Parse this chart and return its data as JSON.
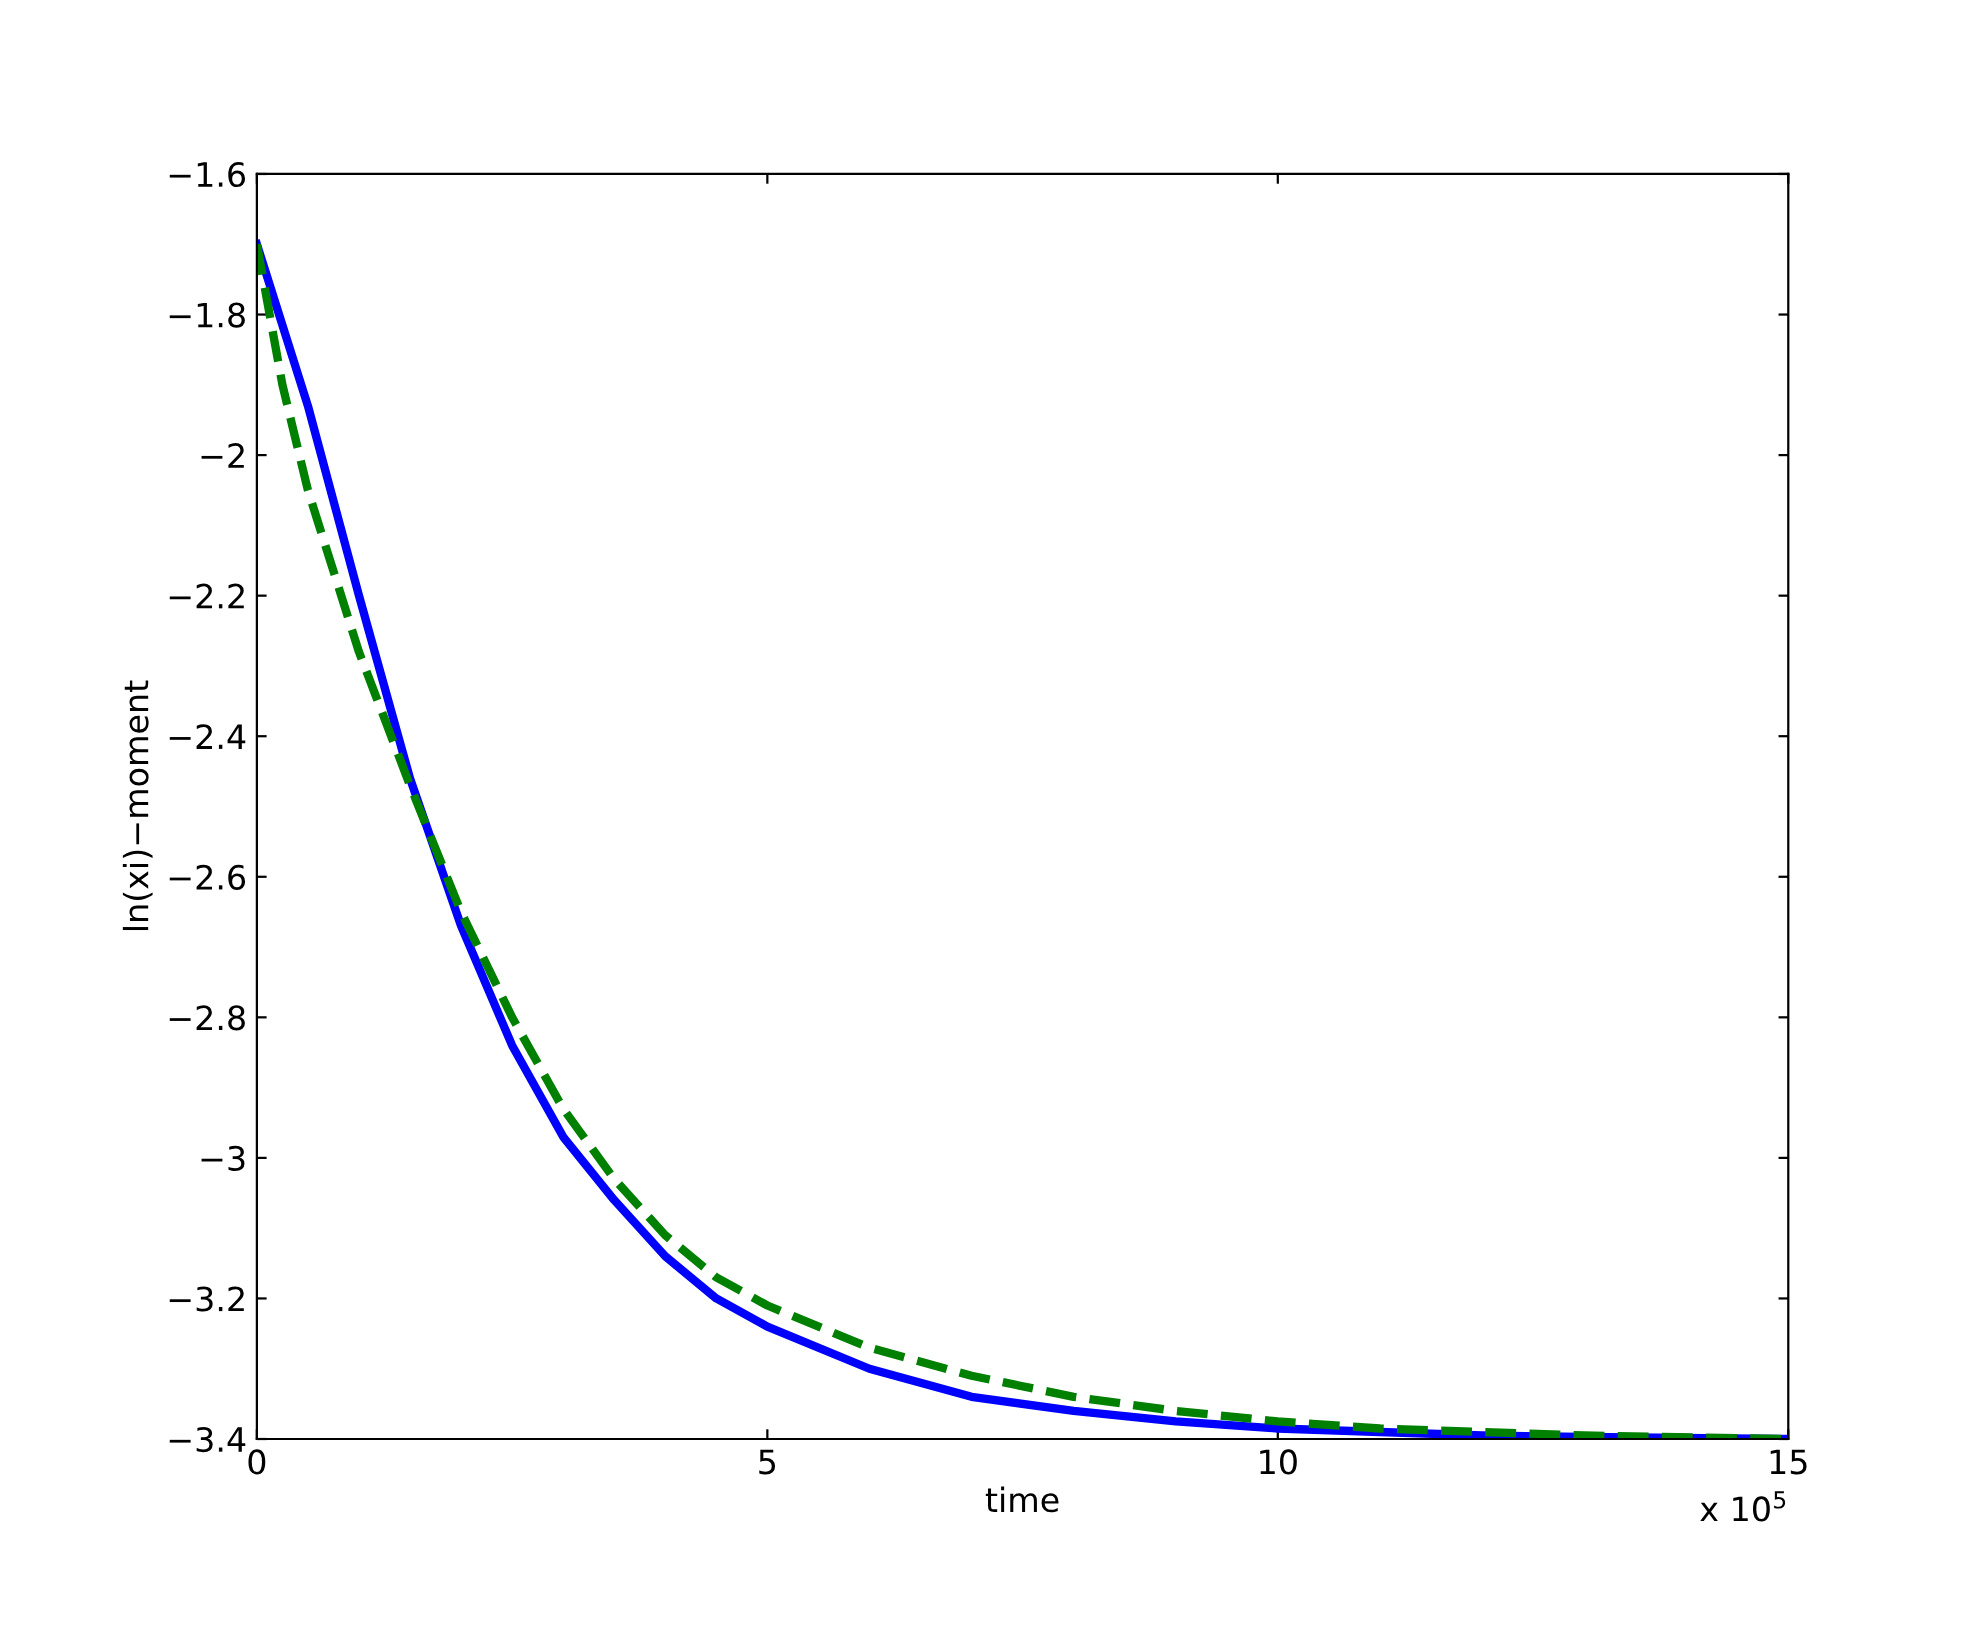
{
  "chart_data": {
    "type": "line",
    "xlabel": "time",
    "ylabel": "ln(xi)−moment",
    "annotations": [
      "x 10$^{5}$"
    ],
    "xlim": [
      0,
      15
    ],
    "xticks": [
      0,
      5,
      10,
      15
    ],
    "ylim": [
      -3.4,
      -1.6
    ],
    "yticks": [
      -3.4,
      -3.2,
      -3,
      -2.8,
      -2.6,
      -2.4,
      -2.2,
      -2,
      -1.8,
      -1.6
    ],
    "grid": false,
    "legend": false,
    "series": [
      {
        "color": "#0000ff",
        "line_style": "solid",
        "x": [
          0,
          0.5,
          1,
          1.5,
          2,
          2.5,
          3,
          3.5,
          4,
          4.5,
          5,
          6,
          7,
          8,
          9,
          10,
          11,
          12,
          13,
          15
        ],
        "values": [
          -1.7,
          -1.93,
          -2.2,
          -2.46,
          -2.67,
          -2.84,
          -2.97,
          -3.06,
          -3.14,
          -3.2,
          -3.24,
          -3.3,
          -3.34,
          -3.36,
          -3.375,
          -3.385,
          -3.39,
          -3.395,
          -3.397,
          -3.4
        ]
      },
      {
        "color": "#008000",
        "line_style": "dashed",
        "x": [
          0,
          0.25,
          0.5,
          1,
          1.5,
          2,
          2.5,
          3,
          3.5,
          4,
          4.5,
          5,
          6,
          7,
          8,
          9,
          10,
          11,
          12,
          13,
          15
        ],
        "values": [
          -1.7,
          -1.9,
          -2.05,
          -2.28,
          -2.47,
          -2.65,
          -2.8,
          -2.93,
          -3.03,
          -3.11,
          -3.17,
          -3.21,
          -3.27,
          -3.31,
          -3.34,
          -3.36,
          -3.375,
          -3.385,
          -3.39,
          -3.395,
          -3.4
        ]
      }
    ]
  }
}
